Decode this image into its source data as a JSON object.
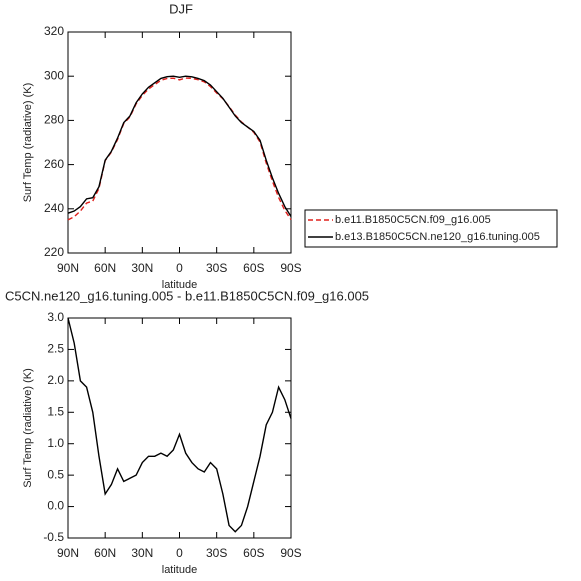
{
  "chart_data": [
    {
      "type": "line",
      "title": "DJF",
      "ylabel": "Surf Temp (radiative) (K)",
      "xlabel": "latitude",
      "x": [
        90,
        85,
        80,
        75,
        70,
        65,
        60,
        55,
        50,
        45,
        40,
        35,
        30,
        25,
        20,
        15,
        10,
        5,
        0,
        -5,
        -10,
        -15,
        -20,
        -25,
        -30,
        -35,
        -40,
        -45,
        -50,
        -55,
        -60,
        -65,
        -70,
        -75,
        -80,
        -85,
        -90
      ],
      "series": [
        {
          "name": "b.e11.B1850C5CN.f09_g16.005",
          "color": "#e0201c",
          "linestyle": "dashed",
          "values": [
            235,
            236.4,
            239,
            242.6,
            243.5,
            249.2,
            261.8,
            265.65,
            271.4,
            278.6,
            281.55,
            287.5,
            291.3,
            294.2,
            296.2,
            298.15,
            299,
            299.1,
            298.35,
            299.15,
            299,
            298.4,
            297.45,
            295.3,
            292.4,
            289.8,
            286.3,
            282.4,
            279.3,
            277,
            274.6,
            270.2,
            260.7,
            252.5,
            245.1,
            239.3,
            235.1
          ]
        },
        {
          "name": "b.e13.B1850C5CN.ne120_g16.tuning.005",
          "color": "#000000",
          "linestyle": "solid",
          "values": [
            238,
            239,
            241,
            244.5,
            245,
            250,
            262,
            266,
            272,
            279,
            282,
            288,
            292,
            295,
            297,
            299,
            299.8,
            300,
            299.5,
            300,
            299.7,
            299,
            298,
            296,
            293,
            290,
            286,
            282,
            279,
            277,
            275,
            271,
            262,
            254,
            247,
            241,
            236.5
          ]
        }
      ],
      "xlim": [
        90,
        -90
      ],
      "xticks": [
        {
          "value": 90,
          "label": "90N"
        },
        {
          "value": 60,
          "label": "60N"
        },
        {
          "value": 30,
          "label": "30N"
        },
        0,
        {
          "value": -30,
          "label": "30S"
        },
        {
          "value": -60,
          "label": "60S"
        },
        {
          "value": -90,
          "label": "90S"
        }
      ],
      "ylim": [
        220,
        320
      ],
      "yticks": [
        220,
        240,
        260,
        280,
        300,
        320
      ]
    },
    {
      "type": "line",
      "title": "C5CN.ne120_g16.tuning.005 - b.e11.B1850C5CN.f09_g16.005",
      "ylabel": "Surf Temp (radiative) (K)",
      "xlabel": "latitude",
      "x": [
        90,
        85,
        80,
        75,
        70,
        65,
        60,
        55,
        50,
        45,
        40,
        35,
        30,
        25,
        20,
        15,
        10,
        5,
        0,
        -5,
        -10,
        -15,
        -20,
        -25,
        -30,
        -35,
        -40,
        -45,
        -50,
        -55,
        -60,
        -65,
        -70,
        -75,
        -80,
        -85,
        -90
      ],
      "series": [
        {
          "color": "#000000",
          "linestyle": "solid",
          "values": [
            3.0,
            2.6,
            2.0,
            1.9,
            1.5,
            0.8,
            0.2,
            0.35,
            0.6,
            0.4,
            0.45,
            0.5,
            0.7,
            0.8,
            0.8,
            0.85,
            0.8,
            0.9,
            1.15,
            0.85,
            0.7,
            0.6,
            0.55,
            0.7,
            0.6,
            0.2,
            -0.3,
            -0.4,
            -0.3,
            0.0,
            0.4,
            0.8,
            1.3,
            1.5,
            1.9,
            1.7,
            1.4
          ]
        }
      ],
      "xlim": [
        90,
        -90
      ],
      "xticks": [
        {
          "value": 90,
          "label": "90N"
        },
        {
          "value": 60,
          "label": "60N"
        },
        {
          "value": 30,
          "label": "30N"
        },
        0,
        {
          "value": -30,
          "label": "30S"
        },
        {
          "value": -60,
          "label": "60S"
        },
        {
          "value": -90,
          "label": "90S"
        }
      ],
      "ylim": [
        -0.5,
        3.0
      ],
      "yticks": [
        -0.5,
        {
          "value": 0,
          "label": "0.0"
        },
        0.5,
        {
          "value": 1,
          "label": "1.0"
        },
        1.5,
        {
          "value": 2,
          "label": "2.0"
        },
        2.5,
        {
          "value": 3,
          "label": "3.0"
        }
      ]
    }
  ]
}
